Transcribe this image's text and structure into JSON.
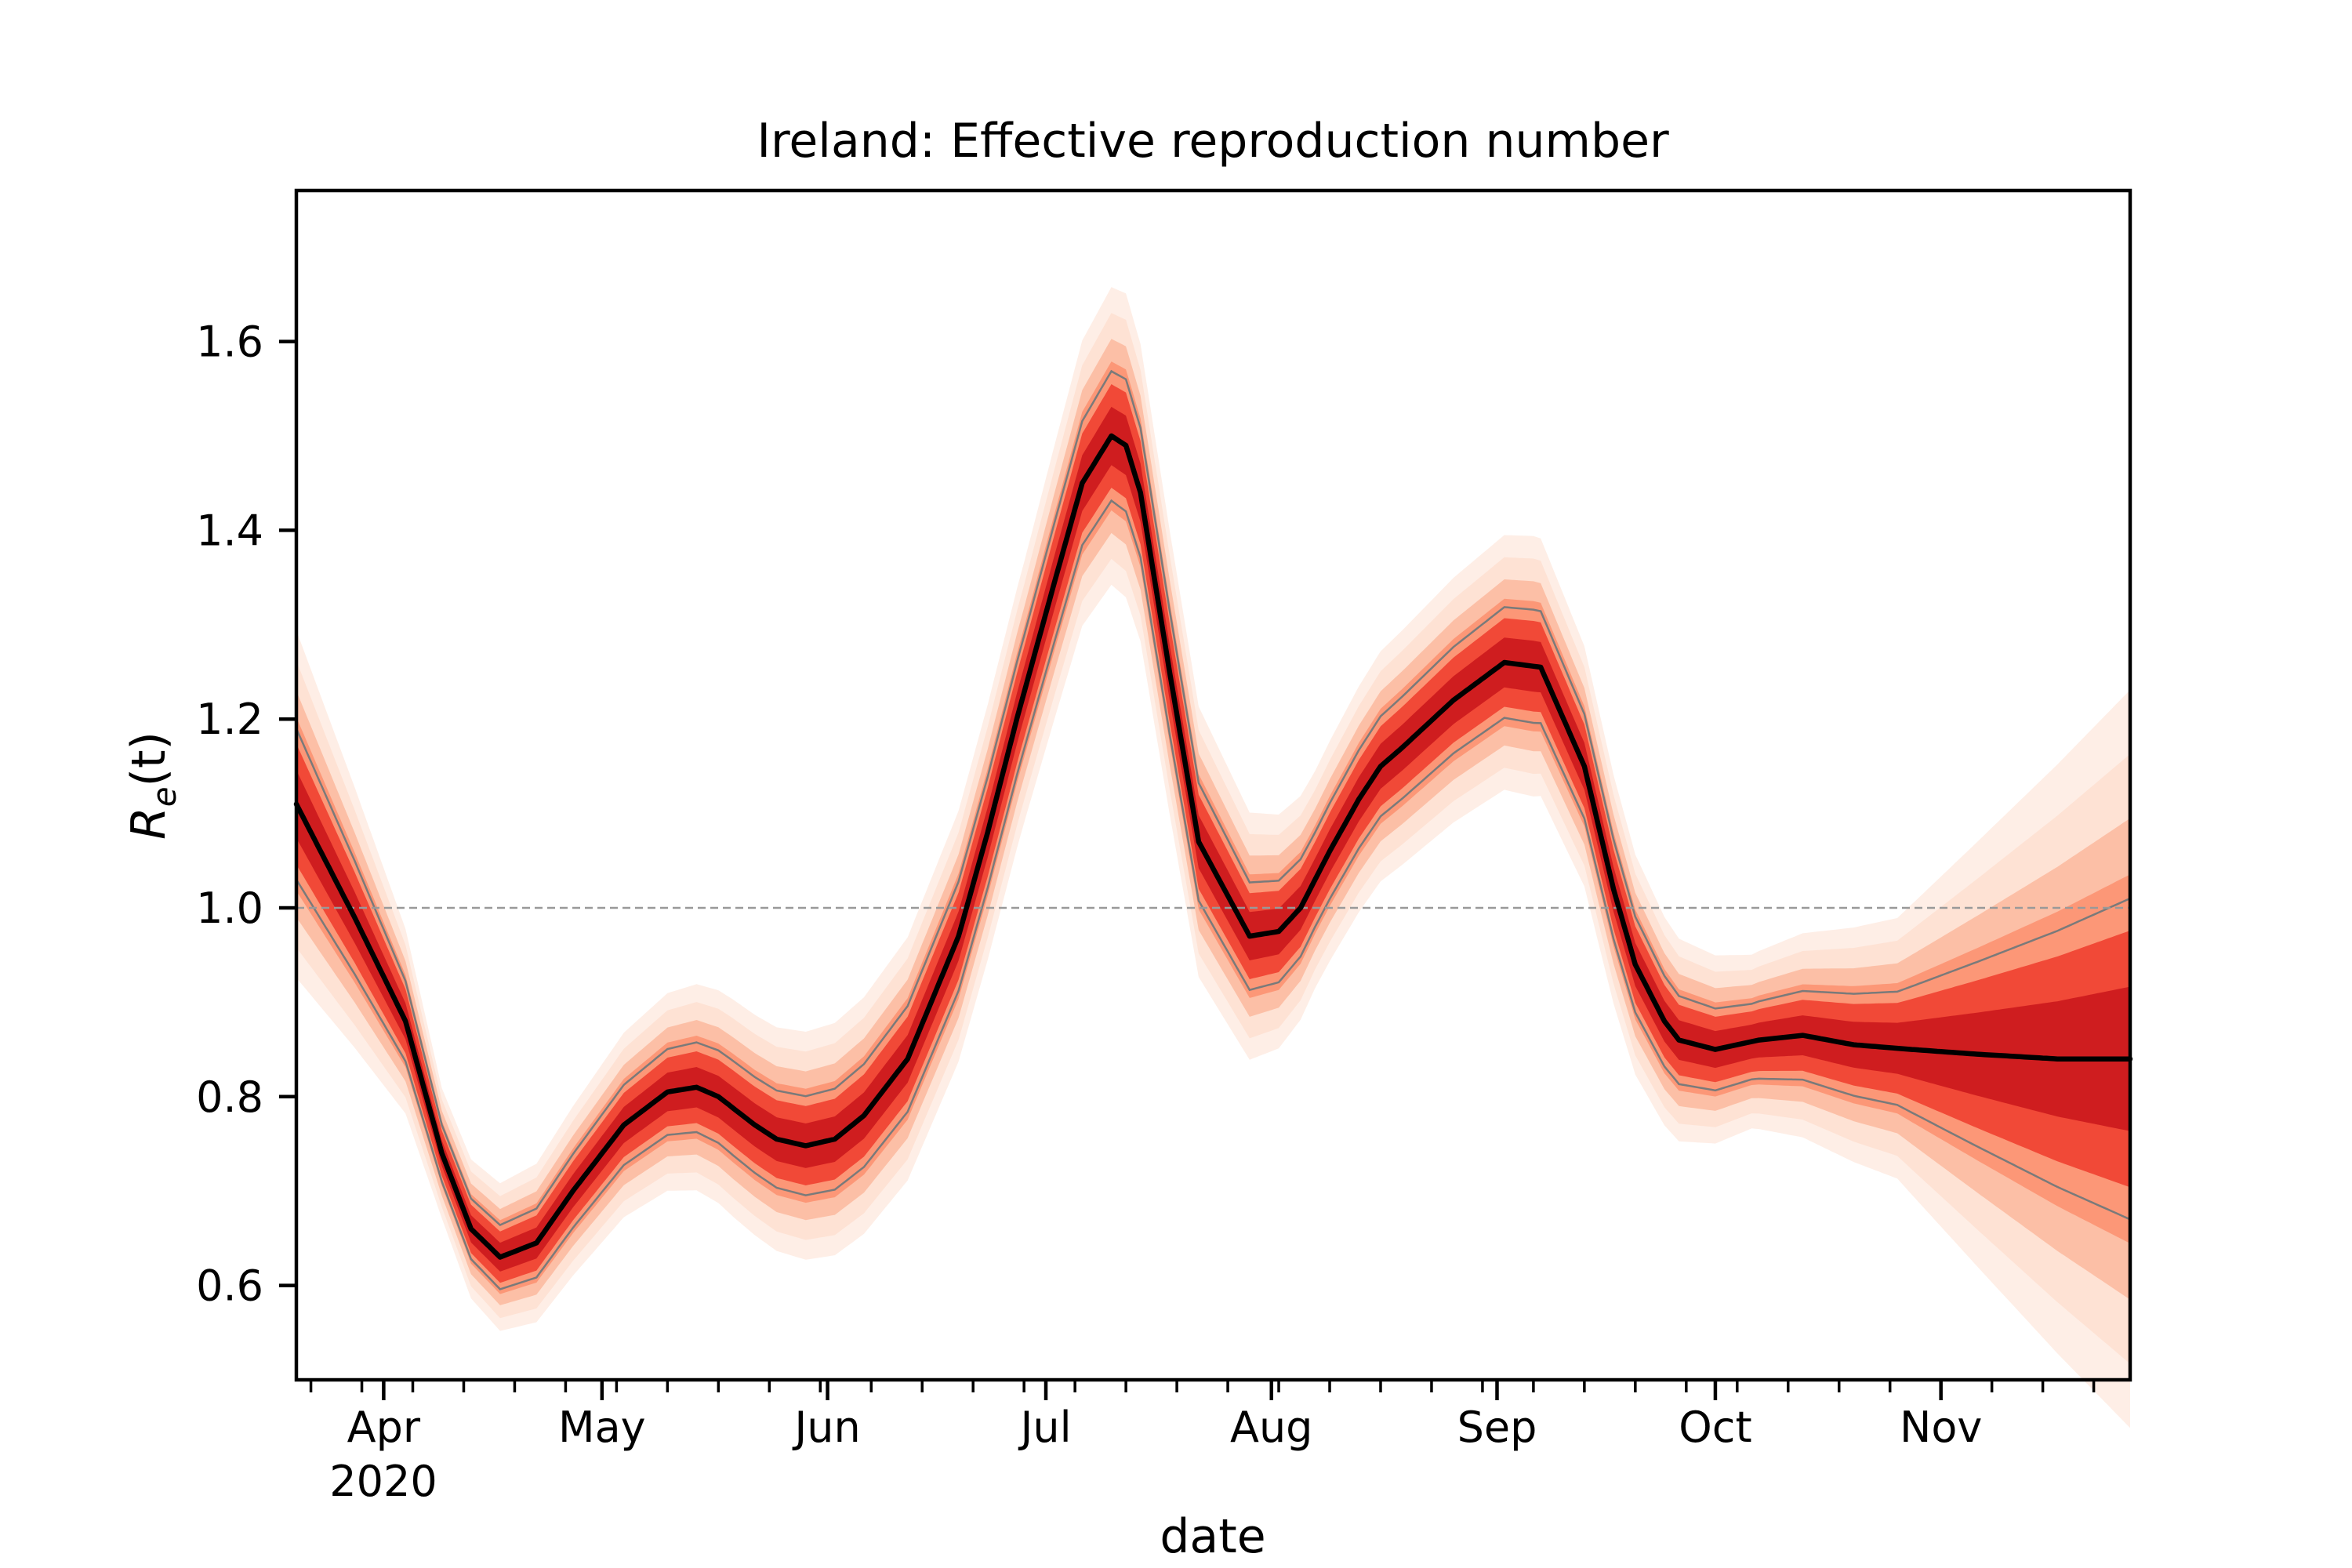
{
  "chart_data": {
    "type": "line",
    "title": "Ireland: Effective reproduction number",
    "xlabel": "date",
    "ylabel_main": "R",
    "ylabel_sub": "e",
    "ylabel_arg": "(t)",
    "x_start": "2020-03-20",
    "x_end": "2020-11-27",
    "ylim": [
      0.5,
      1.76
    ],
    "y_ticks": [
      0.6,
      0.8,
      1.0,
      1.2,
      1.4,
      1.6
    ],
    "y_tick_labels": [
      "0.6",
      "0.8",
      "1.0",
      "1.2",
      "1.4",
      "1.6"
    ],
    "x_tick_labels": [
      "Apr",
      "May",
      "Jun",
      "Jul",
      "Aug",
      "Sep",
      "Oct",
      "Nov"
    ],
    "x_tick_dates": [
      "2020-04-01",
      "2020-05-01",
      "2020-06-01",
      "2020-07-01",
      "2020-08-01",
      "2020-09-01",
      "2020-10-01",
      "2020-11-01"
    ],
    "year_label": "2020",
    "reference_line": 1.0,
    "series": [
      {
        "name": "median",
        "days": [
          0,
          8,
          15,
          20,
          24,
          28,
          33,
          38,
          45,
          51,
          55,
          58,
          63,
          66,
          70,
          74,
          78,
          84,
          91,
          95,
          99,
          104,
          108,
          112,
          114,
          116,
          120,
          124,
          131,
          135,
          138,
          142,
          146,
          149,
          152,
          159,
          166,
          171,
          177,
          181,
          184,
          188,
          190,
          195,
          201,
          207,
          214,
          222,
          231,
          242,
          252
        ],
        "values": [
          1.11,
          0.99,
          0.88,
          0.74,
          0.66,
          0.63,
          0.645,
          0.7,
          0.77,
          0.805,
          0.81,
          0.8,
          0.77,
          0.755,
          0.748,
          0.755,
          0.78,
          0.84,
          0.97,
          1.08,
          1.2,
          1.34,
          1.45,
          1.5,
          1.49,
          1.44,
          1.25,
          1.07,
          0.97,
          0.975,
          1.0,
          1.06,
          1.115,
          1.15,
          1.17,
          1.22,
          1.26,
          1.255,
          1.15,
          1.02,
          0.94,
          0.88,
          0.86,
          0.85,
          0.86,
          0.865,
          0.855,
          0.85,
          0.845,
          0.84,
          0.84
        ]
      }
    ],
    "uncertainty_halfwidth": {
      "days": [
        0,
        20,
        60,
        100,
        114,
        140,
        170,
        200,
        220,
        252
      ],
      "values": [
        0.08,
        0.03,
        0.05,
        0.06,
        0.07,
        0.05,
        0.06,
        0.04,
        0.06,
        0.17
      ]
    },
    "colors": {
      "median": "#000000",
      "band_outer": "#fee0d2",
      "band_mid": "#fc9272",
      "band_inner": "#cb181d",
      "interval_line": "#7a7a7a",
      "reference": "#999999"
    }
  }
}
